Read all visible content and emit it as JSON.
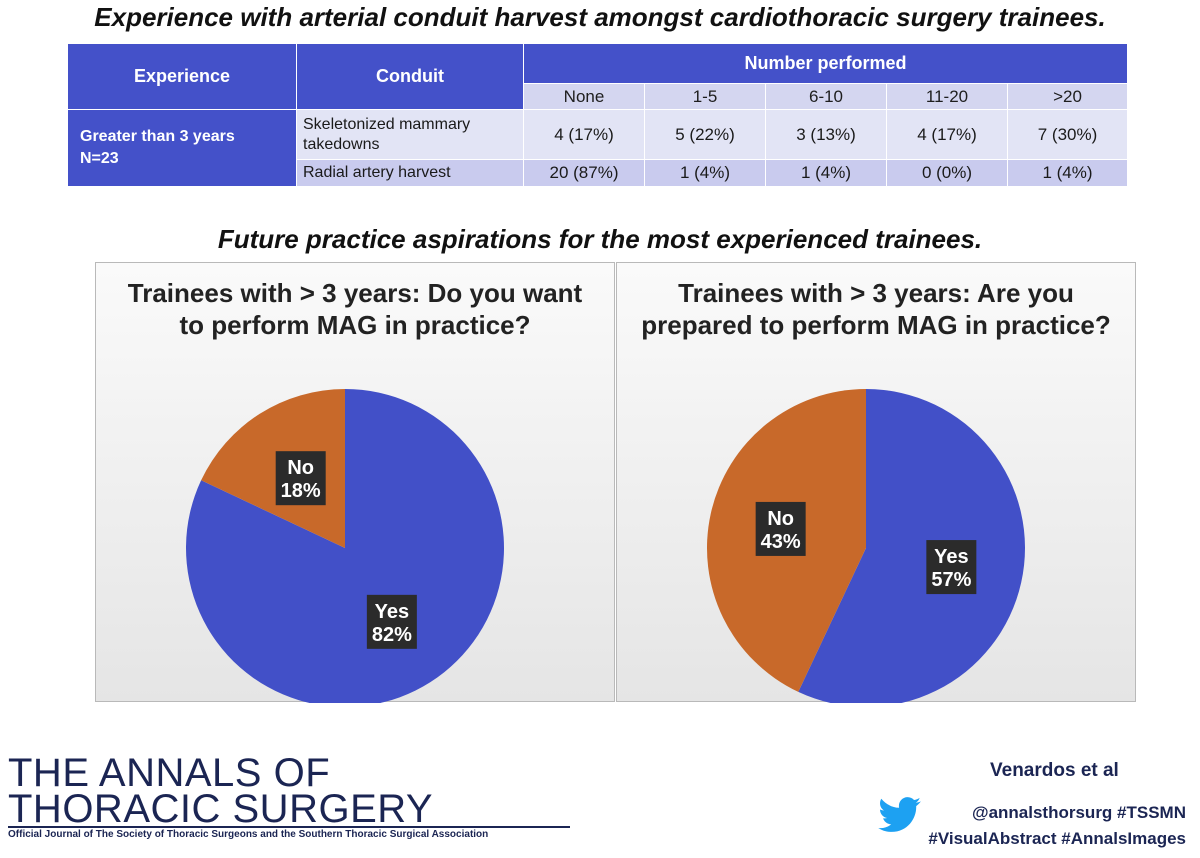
{
  "heading_table": "Experience with arterial conduit harvest amongst cardiothoracic surgery trainees.",
  "table": {
    "col_experience": "Experience",
    "col_conduit": "Conduit",
    "col_number": "Number performed",
    "bins": [
      "None",
      "1-5",
      "6-10",
      "11-20",
      ">20"
    ],
    "group_line1": "Greater than 3 years",
    "group_line2": "N=23",
    "rows": [
      {
        "conduit": "Skeletonized mammary takedowns",
        "cells": [
          "4 (17%)",
          "5 (22%)",
          "3 (13%)",
          "4 (17%)",
          "7 (30%)"
        ]
      },
      {
        "conduit": "Radial artery harvest",
        "cells": [
          "20 (87%)",
          "1 (4%)",
          "1 (4%)",
          "0 (0%)",
          "1 (4%)"
        ]
      }
    ]
  },
  "heading_pies": "Future practice aspirations for the most experienced trainees.",
  "chart_data": [
    {
      "type": "pie",
      "title": "Trainees with > 3 years: Do you want to perform MAG in practice?",
      "categories": [
        "Yes",
        "No"
      ],
      "values": [
        82,
        18
      ],
      "labels": [
        "82%",
        "18%"
      ],
      "colors": [
        "#4250c8",
        "#c8692a"
      ]
    },
    {
      "type": "pie",
      "title": "Trainees with > 3 years: Are you prepared to perform MAG in practice?",
      "categories": [
        "Yes",
        "No"
      ],
      "values": [
        57,
        43
      ],
      "labels": [
        "57%",
        "43%"
      ],
      "colors": [
        "#4250c8",
        "#c8692a"
      ]
    }
  ],
  "footer": {
    "journal_line1": "THE ANNALS OF",
    "journal_line2": "THORACIC SURGERY",
    "journal_sub": "Official Journal of The Society of Thoracic Surgeons and the Southern Thoracic Surgical Association",
    "author": "Venardos et al",
    "handle": "@annalsthorsurg #TSSMN",
    "tags": "#VisualAbstract #AnnalsImages",
    "twitter_icon": "twitter-bird-icon",
    "twitter_color": "#1da1f2"
  }
}
